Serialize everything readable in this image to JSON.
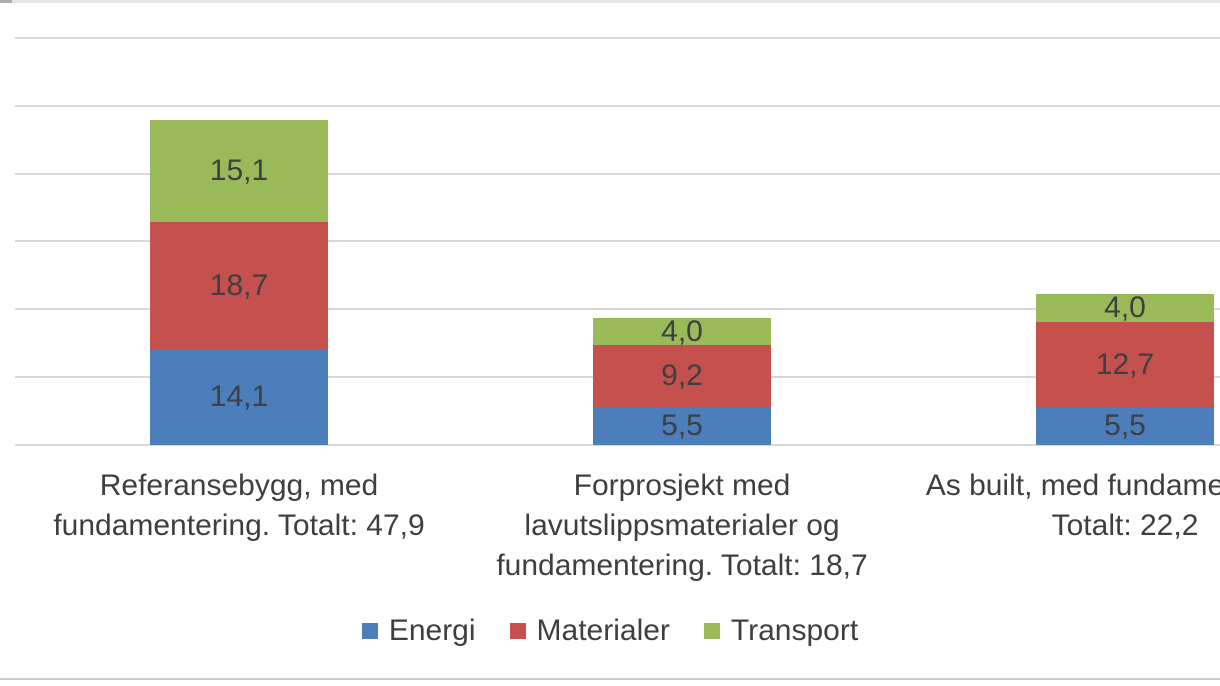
{
  "chart_data": {
    "type": "bar",
    "stacked": true,
    "orientation": "vertical",
    "title": "",
    "xlabel": "",
    "ylabel": "",
    "ylim": [
      0,
      60
    ],
    "gridline_step": 10,
    "grid": true,
    "y_axis_tick_labels_visible": false,
    "number_format": "decimal-comma",
    "legend_position": "bottom",
    "categories": [
      {
        "lines": [
          "Referansebygg, med",
          "fundamentering. Totalt: 47,9"
        ],
        "total_label": "47,9"
      },
      {
        "lines": [
          "Forprosjekt med",
          "lavutslippsmaterialer og",
          "fundamentering. Totalt: 18,7"
        ],
        "total_label": "18,7"
      },
      {
        "lines": [
          "As built, med fundamentering.",
          "Totalt: 22,2"
        ],
        "total_label": "22,2"
      }
    ],
    "series": [
      {
        "name": "Energi",
        "color": "#4b7ebb",
        "values": [
          14.1,
          5.5,
          5.5
        ],
        "labels": [
          "14,1",
          "5,5",
          "5,5"
        ]
      },
      {
        "name": "Materialer",
        "color": "#c4514e",
        "values": [
          18.7,
          9.2,
          12.7
        ],
        "labels": [
          "18,7",
          "9,2",
          "12,7"
        ]
      },
      {
        "name": "Transport",
        "color": "#9aba5a",
        "values": [
          15.1,
          4.0,
          4.0
        ],
        "labels": [
          "15,1",
          "4,0",
          "4,0"
        ]
      }
    ]
  },
  "colors": {
    "gridline": "#d9d9d9",
    "text": "#3f3f3f",
    "background": "#ffffff",
    "top_rule": "#e4e4e4",
    "top_rule_mark": "#adadad",
    "bottom_rule": "#cbcbcb"
  }
}
